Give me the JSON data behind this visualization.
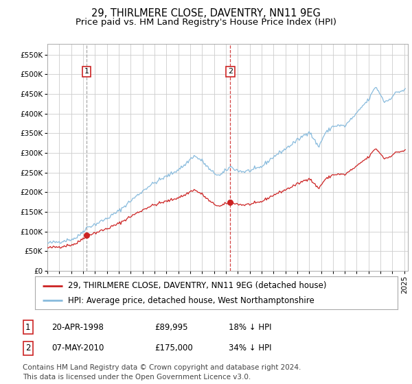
{
  "title": "29, THIRLMERE CLOSE, DAVENTRY, NN11 9EG",
  "subtitle": "Price paid vs. HM Land Registry's House Price Index (HPI)",
  "legend_line1": "29, THIRLMERE CLOSE, DAVENTRY, NN11 9EG (detached house)",
  "legend_line2": "HPI: Average price, detached house, West Northamptonshire",
  "table_row1_num": "1",
  "table_row1_date": "20-APR-1998",
  "table_row1_price": "£89,995",
  "table_row1_hpi": "18% ↓ HPI",
  "table_row2_num": "2",
  "table_row2_date": "07-MAY-2010",
  "table_row2_price": "£175,000",
  "table_row2_hpi": "34% ↓ HPI",
  "footnote_line1": "Contains HM Land Registry data © Crown copyright and database right 2024.",
  "footnote_line2": "This data is licensed under the Open Government Licence v3.0.",
  "purchase1_year": 1998.29,
  "purchase1_value": 89995,
  "purchase2_year": 2010.37,
  "purchase2_value": 175000,
  "vline1_year": 1998.29,
  "vline2_year": 2010.37,
  "ylim_min": 0,
  "ylim_max": 577000,
  "yticks": [
    0,
    50000,
    100000,
    150000,
    200000,
    250000,
    300000,
    350000,
    400000,
    450000,
    500000,
    550000
  ],
  "xlim_min": 1995,
  "xlim_max": 2025.3,
  "background_color": "#ffffff",
  "plot_bg_color": "#ffffff",
  "grid_color": "#cccccc",
  "hpi_line_color": "#88bbdd",
  "price_line_color": "#cc2222",
  "vline1_color": "#999999",
  "vline2_color": "#cc2222",
  "box_edge_color": "#cc2222",
  "title_fontsize": 10.5,
  "subtitle_fontsize": 9.5,
  "tick_fontsize": 7.5,
  "legend_fontsize": 8.5,
  "table_fontsize": 8.5,
  "footnote_fontsize": 7.5
}
